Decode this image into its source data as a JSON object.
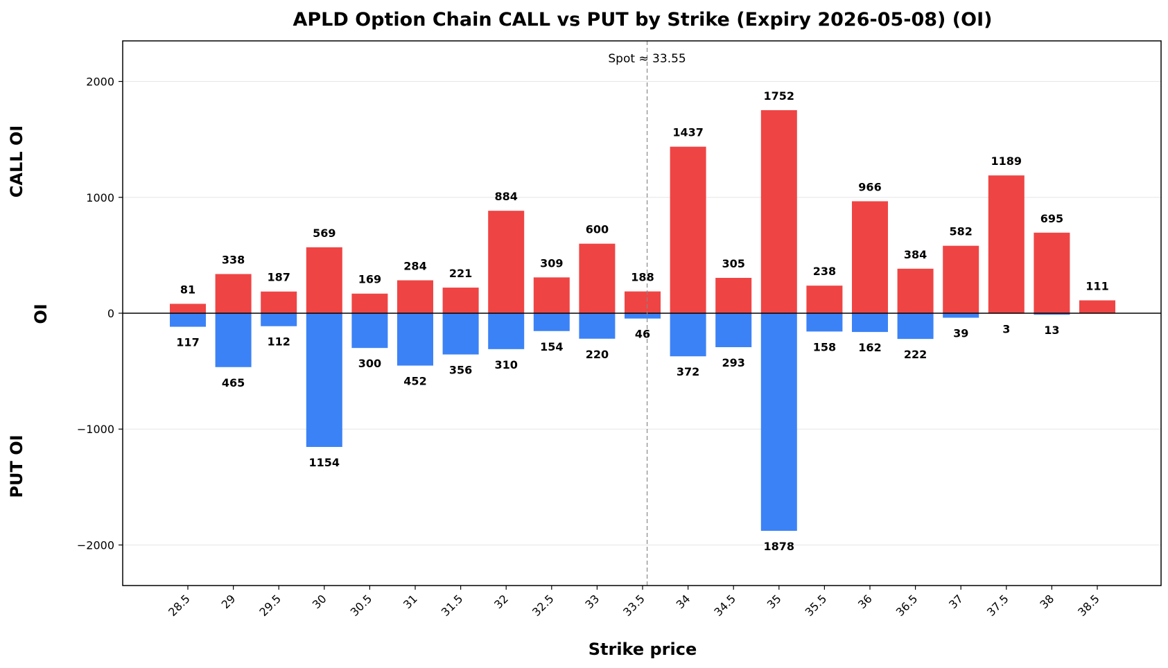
{
  "chart_data": {
    "type": "bar",
    "title": "APLD Option Chain CALL vs PUT by Strike (Expiry 2026-05-08) (OI)",
    "xlabel": "Strike price",
    "ylabel": "OI",
    "ylabel_top": "CALL OI",
    "ylabel_bottom": "PUT OI",
    "ylim": [
      -2350,
      2350
    ],
    "yticks": [
      2000,
      1000,
      0,
      -1000,
      -2000
    ],
    "ytick_labels": [
      "2000",
      "1000",
      "0",
      "−1000",
      "−2000"
    ],
    "grid": true,
    "categories": [
      "28.5",
      "29",
      "29.5",
      "30",
      "30.5",
      "31",
      "31.5",
      "32",
      "32.5",
      "33",
      "33.5",
      "34",
      "34.5",
      "35",
      "35.5",
      "36",
      "36.5",
      "37",
      "37.5",
      "38",
      "38.5"
    ],
    "series": [
      {
        "values": [
          81,
          338,
          187,
          569,
          169,
          284,
          221,
          884,
          309,
          600,
          188,
          1437,
          305,
          1752,
          238,
          966,
          384,
          582,
          1189,
          695,
          111
        ],
        "color": "#ef4444"
      },
      {
        "values": [
          117,
          465,
          112,
          1154,
          300,
          452,
          356,
          310,
          154,
          220,
          46,
          372,
          293,
          1878,
          158,
          162,
          222,
          39,
          3,
          13,
          0
        ],
        "color": "#3b82f6"
      }
    ],
    "put_labels": [
      "117",
      "465",
      "112",
      "1154",
      "300",
      "452",
      "356",
      "310",
      "154",
      "220",
      "46",
      "372",
      "293",
      "1878",
      "158",
      "162",
      "222",
      "39",
      "3",
      "13",
      ""
    ],
    "spot": {
      "value": 33.55,
      "label": "Spot ≈ 33.55"
    }
  }
}
